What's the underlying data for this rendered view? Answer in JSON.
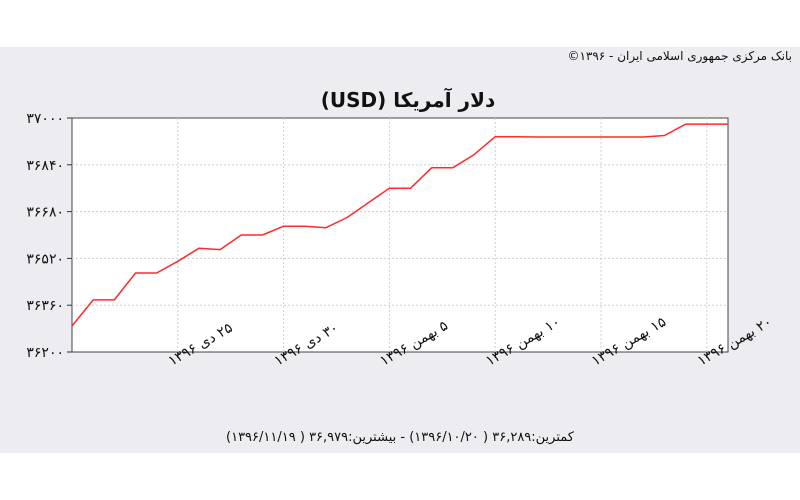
{
  "header": {
    "copyright": "بانک مرکزی جمهوری اسلامی ایران - ۱۳۹۶©"
  },
  "footer": {
    "summary": "کمترین:۳۶,۲۸۹ ( ۱۳۹۶/۱۰/۲۰) - بیشترین:۳۶,۹۷۹ ( ۱۳۹۶/۱۱/۱۹)"
  },
  "colors": {
    "line": "#ff2a2a",
    "panel": "#ececf1",
    "grid": "#cfcfcf"
  },
  "chart_data": {
    "type": "line",
    "title": "دلار آمریکا (USD)",
    "ylim": [
      36200,
      37000
    ],
    "yticks": [
      37000,
      36840,
      36680,
      36520,
      36360,
      36200
    ],
    "ytick_labels": [
      "۳۷۰۰۰",
      "۳۶۸۴۰",
      "۳۶۶۸۰",
      "۳۶۵۲۰",
      "۳۶۳۶۰",
      "۳۶۲۰۰"
    ],
    "xlim": [
      0,
      31
    ],
    "xticks": [
      5,
      10,
      15,
      20,
      25,
      30
    ],
    "xtick_labels": [
      "۲۵ دی ۱۳۹۶",
      "۳۰ دی ۱۳۹۶",
      "۵ بهمن ۱۳۹۶",
      "۱۰ بهمن ۱۳۹۶",
      "۱۵ بهمن ۱۳۹۶",
      "۲۰ بهمن ۱۳۹۶"
    ],
    "grid": true,
    "series": [
      {
        "x": [
          0,
          1,
          2,
          3,
          4,
          5,
          6,
          7,
          8,
          9,
          10,
          11,
          12,
          13,
          14,
          15,
          16,
          17,
          18,
          19,
          20,
          21,
          22,
          23,
          24,
          25,
          26,
          27,
          28,
          29,
          30,
          31
        ],
        "values": [
          36289,
          36378,
          36378,
          36470,
          36470,
          36510,
          36555,
          36550,
          36600,
          36600,
          36630,
          36630,
          36625,
          36660,
          36710,
          36760,
          36760,
          36830,
          36830,
          36875,
          36936,
          36936,
          36935,
          36935,
          36935,
          36935,
          36935,
          36935,
          36940,
          36979,
          36979,
          36979
        ]
      }
    ]
  }
}
